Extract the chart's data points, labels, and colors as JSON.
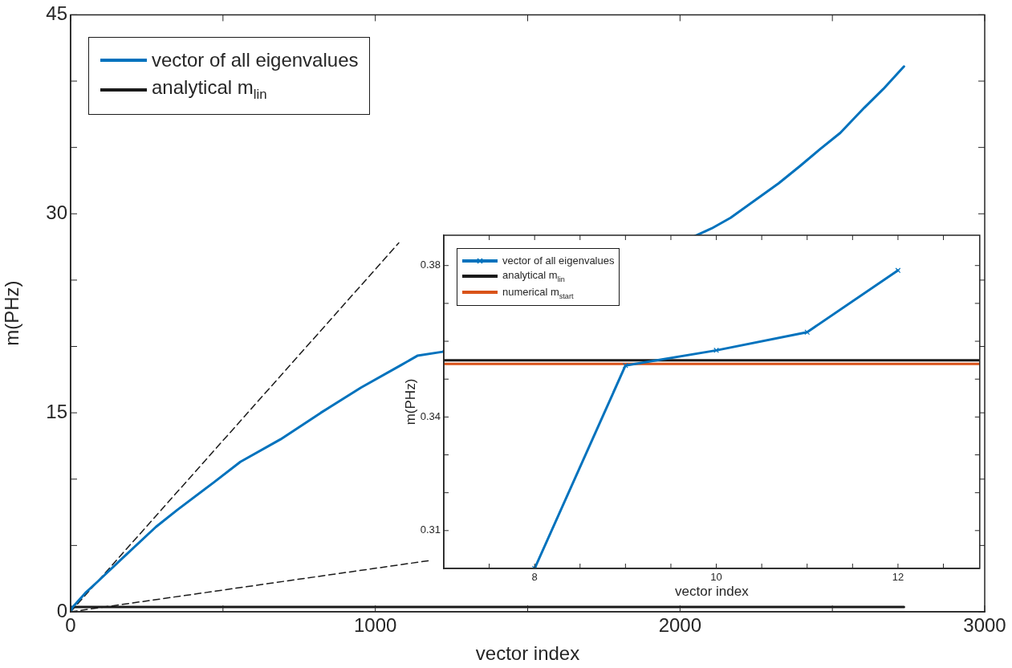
{
  "chart_data": [
    {
      "type": "line",
      "xlabel": "vector index",
      "ylabel": "m(PHz)",
      "xlim": [
        0,
        3000
      ],
      "ylim": [
        0,
        45
      ],
      "xticks": [
        0,
        {
          "value": 500,
          "label": null
        },
        1000,
        {
          "value": 1500,
          "label": null
        },
        2000,
        {
          "value": 2500,
          "label": null
        },
        3000
      ],
      "yticks": [
        0,
        {
          "value": 5,
          "label": null
        },
        {
          "value": 10,
          "label": null
        },
        15,
        {
          "value": 20,
          "label": null
        },
        {
          "value": 25,
          "label": null
        },
        30,
        {
          "value": 35,
          "label": null
        },
        {
          "value": 40,
          "label": null
        },
        45
      ],
      "legend": "top left",
      "series": [
        {
          "name": "vector of all eigenvalues",
          "color": "#0072bd",
          "x": [
            0,
            6,
            48,
            87,
            171,
            280,
            350,
            468,
            557,
            689,
            821,
            953,
            1085,
            1138,
            1221,
            2104,
            2166,
            2245,
            2324,
            2394,
            2456,
            2526,
            2605,
            2667,
            2735
          ],
          "values": [
            0,
            0.33,
            1.41,
            2.24,
            4.06,
            6.4,
            7.68,
            9.72,
            11.3,
            13.0,
            15.0,
            16.9,
            18.6,
            19.3,
            19.6,
            28.9,
            29.7,
            31.0,
            32.3,
            33.6,
            34.8,
            36.1,
            38.0,
            39.4,
            41.1
          ]
        },
        {
          "name": "analytical m$_{lin}$",
          "color": "#1a1a1a",
          "x": [
            0,
            2735
          ],
          "values": [
            0.36,
            0.36
          ]
        },
        {
          "color": "#1a1a1a",
          "line_style": "dashed",
          "x": [
            0,
            1077
          ],
          "values": [
            0,
            27.8
          ]
        },
        {
          "color": "#1a1a1a",
          "line_style": "dashed",
          "x": [
            0,
            1177
          ],
          "values": [
            0,
            3.86
          ]
        }
      ]
    },
    {
      "type": "line",
      "xlabel": "vector index",
      "ylabel": "m(PHz)",
      "xlim": [
        7,
        12.9
      ],
      "ylim": [
        0.3,
        0.388
      ],
      "xticks": [
        {
          "value": 7.5,
          "label": null
        },
        8,
        {
          "value": 8.5,
          "label": null
        },
        {
          "value": 9,
          "label": null
        },
        {
          "value": 9.5,
          "label": null
        },
        10,
        {
          "value": 10.5,
          "label": null
        },
        {
          "value": 11,
          "label": null
        },
        {
          "value": 11.5,
          "label": null
        },
        12,
        {
          "value": 12.5,
          "label": null
        }
      ],
      "yticks": [
        0.31,
        {
          "value": 0.32,
          "label": null
        },
        {
          "value": 0.33,
          "label": null
        },
        0.34,
        {
          "value": 0.35,
          "label": null
        },
        {
          "value": 0.36,
          "label": null
        },
        {
          "value": 0.37,
          "label": null
        },
        0.38
      ],
      "legend": "top left",
      "series": [
        {
          "name": "vector of all eigenvalues",
          "color": "#0072bd",
          "marker": "cross",
          "x": [
            8,
            9,
            10,
            11,
            12
          ],
          "values": [
            0.3,
            0.3536,
            0.3576,
            0.3624,
            0.3787
          ]
        },
        {
          "name": "analytical m$_{lin}$",
          "color": "#1a1a1a",
          "x": [
            7,
            12.9
          ],
          "values": [
            0.355,
            0.355
          ]
        },
        {
          "name": "numerical m$_{start}$",
          "color": "#d95319",
          "x": [
            7,
            12.9
          ],
          "values": [
            0.354,
            0.354
          ]
        }
      ]
    }
  ]
}
